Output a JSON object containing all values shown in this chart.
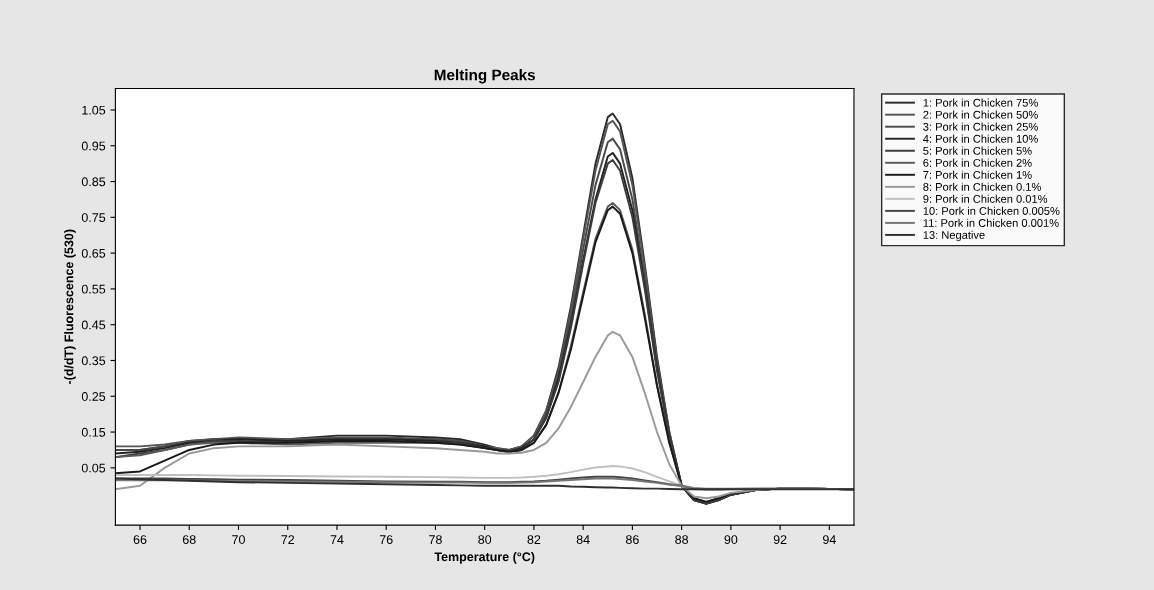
{
  "chart_data": {
    "type": "line",
    "title": "Melting Peaks",
    "xlabel": "Temperature (°C)",
    "ylabel": "-(d/dT) Fluorescence (530)",
    "x": [
      65,
      66,
      67,
      68,
      69,
      70,
      72,
      74,
      76,
      78,
      79,
      80,
      80.5,
      81,
      81.5,
      82,
      82.5,
      83,
      83.5,
      84,
      84.5,
      85,
      85.2,
      85.5,
      86,
      86.5,
      87,
      87.5,
      88,
      88.5,
      89,
      89.5,
      90,
      91,
      92,
      93,
      95
    ],
    "series": [
      {
        "name": "1: Pork in Chicken 75%",
        "color": "#2a2a2a",
        "values": [
          0.1,
          0.1,
          0.11,
          0.125,
          0.13,
          0.13,
          0.13,
          0.14,
          0.14,
          0.135,
          0.13,
          0.115,
          0.105,
          0.1,
          0.11,
          0.14,
          0.21,
          0.33,
          0.5,
          0.7,
          0.9,
          1.03,
          1.04,
          1.01,
          0.86,
          0.62,
          0.36,
          0.15,
          0.0,
          -0.04,
          -0.05,
          -0.04,
          -0.025,
          -0.012,
          -0.008,
          -0.008,
          -0.01
        ]
      },
      {
        "name": "2: Pork in Chicken 50%",
        "color": "#555555",
        "values": [
          0.11,
          0.11,
          0.115,
          0.125,
          0.13,
          0.135,
          0.13,
          0.135,
          0.135,
          0.13,
          0.125,
          0.11,
          0.105,
          0.1,
          0.11,
          0.14,
          0.21,
          0.32,
          0.49,
          0.69,
          0.88,
          1.01,
          1.02,
          0.99,
          0.84,
          0.61,
          0.35,
          0.15,
          0.0,
          -0.04,
          -0.05,
          -0.04,
          -0.025,
          -0.012,
          -0.008,
          -0.008,
          -0.01
        ]
      },
      {
        "name": "3: Pork in Chicken 25%",
        "color": "#4a4a4a",
        "values": [
          0.1,
          0.1,
          0.11,
          0.12,
          0.13,
          0.13,
          0.125,
          0.13,
          0.13,
          0.13,
          0.125,
          0.11,
          0.1,
          0.1,
          0.105,
          0.13,
          0.2,
          0.31,
          0.47,
          0.66,
          0.84,
          0.96,
          0.97,
          0.94,
          0.8,
          0.58,
          0.34,
          0.14,
          0.0,
          -0.04,
          -0.05,
          -0.04,
          -0.025,
          -0.012,
          -0.008,
          -0.008,
          -0.01
        ]
      },
      {
        "name": "4: Pork in Chicken 10%",
        "color": "#222222",
        "values": [
          0.09,
          0.095,
          0.105,
          0.12,
          0.125,
          0.13,
          0.125,
          0.13,
          0.13,
          0.125,
          0.12,
          0.11,
          0.1,
          0.095,
          0.105,
          0.13,
          0.19,
          0.3,
          0.45,
          0.63,
          0.8,
          0.92,
          0.93,
          0.9,
          0.77,
          0.56,
          0.33,
          0.14,
          0.0,
          -0.04,
          -0.05,
          -0.04,
          -0.025,
          -0.012,
          -0.008,
          -0.008,
          -0.01
        ]
      },
      {
        "name": "5: Pork in Chicken 5%",
        "color": "#3c3c3c",
        "values": [
          0.08,
          0.09,
          0.1,
          0.115,
          0.125,
          0.125,
          0.12,
          0.125,
          0.125,
          0.12,
          0.12,
          0.105,
          0.1,
          0.095,
          0.1,
          0.13,
          0.19,
          0.29,
          0.44,
          0.62,
          0.79,
          0.9,
          0.91,
          0.88,
          0.75,
          0.55,
          0.32,
          0.14,
          0.0,
          -0.04,
          -0.05,
          -0.04,
          -0.025,
          -0.012,
          -0.008,
          -0.008,
          -0.01
        ]
      },
      {
        "name": "6: Pork in Chicken 2%",
        "color": "#5a5a5a",
        "values": [
          0.08,
          0.085,
          0.1,
          0.115,
          0.12,
          0.12,
          0.115,
          0.12,
          0.12,
          0.12,
          0.115,
          0.105,
          0.1,
          0.095,
          0.1,
          0.12,
          0.17,
          0.26,
          0.39,
          0.54,
          0.69,
          0.78,
          0.79,
          0.77,
          0.66,
          0.48,
          0.28,
          0.12,
          0.0,
          -0.035,
          -0.045,
          -0.035,
          -0.022,
          -0.012,
          -0.008,
          -0.008,
          -0.01
        ]
      },
      {
        "name": "7: Pork in Chicken 1%",
        "color": "#1a1a1a",
        "values": [
          0.035,
          0.04,
          0.07,
          0.1,
          0.115,
          0.12,
          0.12,
          0.125,
          0.125,
          0.12,
          0.115,
          0.105,
          0.1,
          0.095,
          0.1,
          0.12,
          0.17,
          0.26,
          0.38,
          0.53,
          0.68,
          0.77,
          0.78,
          0.76,
          0.65,
          0.47,
          0.28,
          0.12,
          0.0,
          -0.035,
          -0.045,
          -0.035,
          -0.022,
          -0.012,
          -0.008,
          -0.008,
          -0.01
        ]
      },
      {
        "name": "8: Pork in Chicken 0.1%",
        "color": "#9a9a9a",
        "values": [
          -0.01,
          0.0,
          0.05,
          0.09,
          0.105,
          0.11,
          0.11,
          0.115,
          0.11,
          0.105,
          0.1,
          0.095,
          0.09,
          0.09,
          0.092,
          0.1,
          0.12,
          0.16,
          0.22,
          0.29,
          0.36,
          0.42,
          0.43,
          0.42,
          0.36,
          0.26,
          0.15,
          0.06,
          0.0,
          -0.03,
          -0.035,
          -0.03,
          -0.02,
          -0.012,
          -0.008,
          -0.008,
          -0.01
        ]
      },
      {
        "name": "9: Pork in Chicken 0.01%",
        "color": "#c0c0c0",
        "values": [
          0.03,
          0.03,
          0.03,
          0.03,
          0.029,
          0.028,
          0.027,
          0.026,
          0.025,
          0.024,
          0.023,
          0.022,
          0.022,
          0.022,
          0.023,
          0.025,
          0.028,
          0.032,
          0.038,
          0.045,
          0.051,
          0.054,
          0.055,
          0.054,
          0.048,
          0.038,
          0.025,
          0.012,
          0.0,
          -0.01,
          -0.012,
          -0.012,
          -0.01,
          -0.009,
          -0.008,
          -0.008,
          -0.01
        ]
      },
      {
        "name": "10: Pork in Chicken 0.005%",
        "color": "#444444",
        "values": [
          0.02,
          0.02,
          0.02,
          0.019,
          0.018,
          0.017,
          0.016,
          0.014,
          0.012,
          0.011,
          0.011,
          0.01,
          0.01,
          0.01,
          0.011,
          0.012,
          0.014,
          0.017,
          0.02,
          0.023,
          0.025,
          0.025,
          0.025,
          0.024,
          0.02,
          0.015,
          0.01,
          0.004,
          0.0,
          -0.008,
          -0.01,
          -0.01,
          -0.009,
          -0.008,
          -0.008,
          -0.008,
          -0.01
        ]
      },
      {
        "name": "11: Pork in Chicken 0.001%",
        "color": "#777777",
        "values": [
          0.015,
          0.015,
          0.015,
          0.015,
          0.014,
          0.013,
          0.012,
          0.011,
          0.01,
          0.009,
          0.009,
          0.008,
          0.008,
          0.008,
          0.009,
          0.01,
          0.012,
          0.014,
          0.016,
          0.018,
          0.02,
          0.02,
          0.02,
          0.019,
          0.016,
          0.012,
          0.008,
          0.003,
          0.0,
          -0.006,
          -0.008,
          -0.008,
          -0.008,
          -0.008,
          -0.008,
          -0.008,
          -0.01
        ]
      },
      {
        "name": "13: Negative",
        "color": "#303030",
        "values": [
          0.02,
          0.018,
          0.016,
          0.014,
          0.012,
          0.01,
          0.008,
          0.006,
          0.004,
          0.002,
          0.001,
          0.0,
          0.0,
          0.0,
          0.0,
          0.0,
          0.0,
          0.0,
          -0.002,
          -0.003,
          -0.004,
          -0.005,
          -0.005,
          -0.006,
          -0.007,
          -0.008,
          -0.008,
          -0.009,
          -0.01,
          -0.01,
          -0.01,
          -0.01,
          -0.01,
          -0.01,
          -0.01,
          -0.01,
          -0.01
        ]
      }
    ],
    "xlim": [
      65,
      95
    ],
    "ylim": [
      -0.11,
      1.11
    ],
    "xticks": [
      66,
      68,
      70,
      72,
      74,
      76,
      78,
      80,
      82,
      84,
      86,
      88,
      90,
      92,
      94
    ],
    "yticks": [
      0.05,
      0.15,
      0.25,
      0.35,
      0.45,
      0.55,
      0.65,
      0.75,
      0.85,
      0.95,
      1.05
    ],
    "legend": "right",
    "grid": false,
    "marker": "none",
    "line_style": "solid"
  }
}
